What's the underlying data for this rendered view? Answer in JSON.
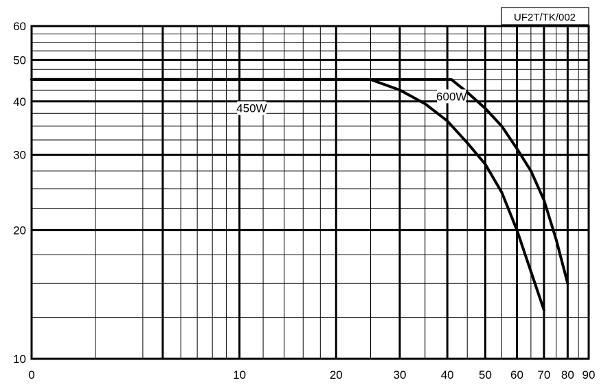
{
  "chart_data": {
    "type": "line",
    "title": "",
    "xlabel": "",
    "ylabel": "",
    "reference": "UF2T/TK/002",
    "x_scale": "log(x+5)",
    "y_scale": "log",
    "xlim": [
      0,
      90
    ],
    "ylim": [
      10,
      60
    ],
    "x_ticks": [
      0,
      10,
      20,
      30,
      40,
      50,
      60,
      70,
      80,
      90
    ],
    "y_ticks": [
      10,
      20,
      30,
      40,
      50,
      60
    ],
    "x_minor_ticks": [
      2,
      4,
      6,
      7,
      8,
      9,
      12,
      14,
      16,
      18,
      25,
      35,
      45,
      55,
      65,
      75,
      85
    ],
    "y_minor_ticks": [
      12.5,
      15,
      17.5,
      22.5,
      25,
      27.5,
      32.5,
      35,
      37.5,
      42.5,
      45,
      47.5,
      52.5,
      55,
      57.5
    ],
    "major_line_x": [
      5,
      10,
      20,
      30,
      40,
      50,
      60,
      70,
      80
    ],
    "major_line_y": [
      20,
      30,
      40,
      50
    ],
    "grid": true,
    "series": [
      {
        "name": "450W",
        "label_at": [
          11,
          38
        ],
        "points": [
          [
            0,
            45
          ],
          [
            25,
            45
          ],
          [
            30,
            42.5
          ],
          [
            35,
            39.5
          ],
          [
            40,
            36
          ],
          [
            45,
            32
          ],
          [
            50,
            28.5
          ],
          [
            55,
            24.5
          ],
          [
            60,
            20
          ],
          [
            65,
            16
          ],
          [
            70,
            13
          ]
        ]
      },
      {
        "name": "600W",
        "label_at": [
          41,
          40.5
        ],
        "points": [
          [
            0,
            45
          ],
          [
            41,
            45
          ],
          [
            45,
            42
          ],
          [
            50,
            38.5
          ],
          [
            55,
            35
          ],
          [
            60,
            31
          ],
          [
            65,
            27.5
          ],
          [
            70,
            23.5
          ],
          [
            75,
            19
          ],
          [
            80,
            15
          ]
        ]
      }
    ]
  }
}
